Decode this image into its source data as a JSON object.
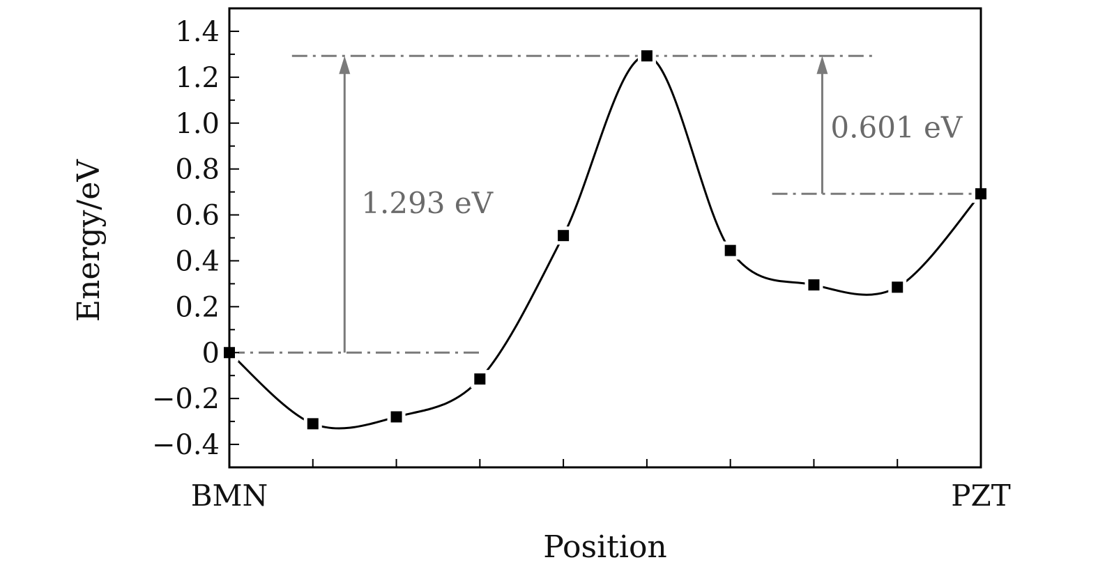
{
  "chart_data": {
    "type": "line",
    "title": "",
    "xlabel": "Position",
    "ylabel": "Energy/eV",
    "x_category_labels": [
      "BMN",
      "PZT"
    ],
    "x": [
      0,
      1,
      2,
      3,
      4,
      5,
      6,
      7,
      8,
      9
    ],
    "xlim": [
      0,
      9
    ],
    "ylim": [
      -0.5,
      1.5
    ],
    "yticks": [
      {
        "value": 1.4,
        "label": "1.4"
      },
      {
        "value": 1.2,
        "label": "1.2"
      },
      {
        "value": 1.0,
        "label": "1.0"
      },
      {
        "value": 0.8,
        "label": "0.8"
      },
      {
        "value": 0.6,
        "label": "0.6"
      },
      {
        "value": 0.4,
        "label": "0.4"
      },
      {
        "value": 0.2,
        "label": "0.2"
      },
      {
        "value": 0.0,
        "label": "0"
      },
      {
        "value": -0.2,
        "label": "−0.2"
      },
      {
        "value": -0.4,
        "label": "−0.4"
      }
    ],
    "series": [
      {
        "values": [
          0.0,
          -0.31,
          -0.28,
          -0.115,
          0.51,
          1.293,
          0.445,
          0.295,
          0.285,
          0.692
        ]
      }
    ],
    "reference_levels": [
      0.0,
      1.293,
      0.692
    ],
    "annotations": [
      {
        "text": "1.293 eV",
        "from_y": 0.0,
        "to_y": 1.293
      },
      {
        "text": "0.601 eV",
        "from_y": 0.692,
        "to_y": 1.293
      }
    ],
    "grid": false,
    "colors": {
      "line": "#000000",
      "marker": "#000000",
      "reference": "#7a7a7a"
    }
  }
}
